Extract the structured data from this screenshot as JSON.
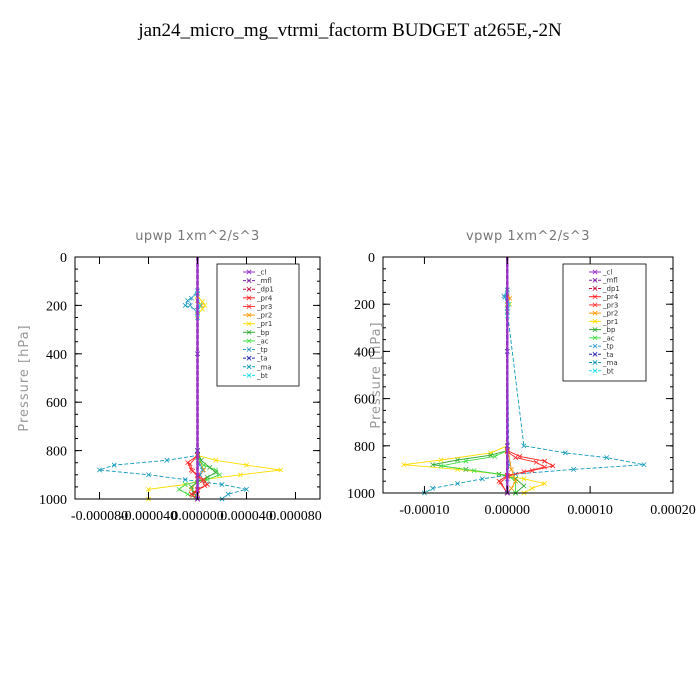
{
  "title": "jan24_micro_mg_vtrmi_factorm  BUDGET at265E,-2N",
  "colors": {
    "_cl": "#9933cc",
    "_mfl": "#7a1fa2",
    "_dp1": "#c0143c",
    "_pr4": "#ff2020",
    "_pr3": "#ff3333",
    "_pr2": "#ff9900",
    "_pr1": "#ffdd00",
    "_bp": "#33aa33",
    "_ac": "#44dd44",
    "_tp": "#3399cc",
    "_ta": "#2222aa",
    "_ma": "#1199bb",
    "_bt": "#22ddee"
  },
  "chart_data": [
    {
      "type": "line",
      "title": "upwp   1xm^2/s^3",
      "ylabel": "Pressure [hPa]",
      "xlim": [
        -0.0001,
        0.0001
      ],
      "ylim": [
        1000,
        0
      ],
      "y_inverted": true,
      "xticks": [
        "-0.000080",
        "-0.000040",
        "0.000000",
        "0.000040",
        "0.000080"
      ],
      "xtick_values": [
        -8e-05,
        -4e-05,
        0,
        4e-05,
        8e-05
      ],
      "yticks": [
        "0",
        "200",
        "400",
        "600",
        "800",
        "1000"
      ],
      "ytick_values": [
        0,
        200,
        400,
        600,
        800,
        1000
      ],
      "legend": [
        "_cl",
        "_mfl",
        "_dp1",
        "_pr4",
        "_pr3",
        "_pr2",
        "_pr1",
        "_bp",
        "_ac",
        "_tp",
        "_ta",
        "_ma",
        "_bt"
      ],
      "legend_position": "top-right",
      "series": [
        {
          "name": "_pr1",
          "x": [
            0,
            0,
            0,
            4e-06,
            6e-06,
            4e-06,
            0,
            0,
            1.5e-05,
            4e-05,
            6.8e-05,
            3.5e-05,
            5e-06,
            -1e-05,
            -4e-05,
            -4e-05,
            0
          ],
          "y": [
            0,
            100,
            160,
            185,
            200,
            215,
            240,
            820,
            840,
            860,
            880,
            900,
            920,
            940,
            960,
            1000,
            1000
          ]
        },
        {
          "name": "_pr2",
          "x": [
            0,
            0,
            0,
            3e-06,
            0,
            0,
            5e-06,
            0,
            -5e-06,
            0,
            0
          ],
          "y": [
            0,
            150,
            180,
            200,
            220,
            820,
            880,
            920,
            960,
            980,
            1000
          ]
        },
        {
          "name": "_ma",
          "x": [
            0,
            0,
            -8e-06,
            -1e-05,
            0,
            0,
            -2.5e-05,
            -6.8e-05,
            -8e-05,
            -4e-05,
            -1e-05,
            2e-05,
            4e-05,
            2.5e-05,
            2e-05
          ],
          "y": [
            0,
            150,
            180,
            200,
            220,
            820,
            840,
            860,
            880,
            900,
            920,
            940,
            960,
            980,
            1000
          ]
        },
        {
          "name": "_tp",
          "x": [
            0,
            0,
            -5e-06,
            -6e-06,
            0,
            0,
            2e-06,
            4e-06,
            2e-06,
            0,
            0
          ],
          "y": [
            0,
            140,
            170,
            200,
            230,
            820,
            860,
            880,
            900,
            960,
            1000
          ]
        },
        {
          "name": "_ac",
          "x": [
            0,
            0,
            0,
            5e-06,
            1.5e-05,
            1.8e-05,
            8e-06,
            -1e-05,
            -1.5e-05,
            -8e-06,
            0
          ],
          "y": [
            0,
            800,
            830,
            860,
            880,
            900,
            920,
            940,
            960,
            980,
            1000
          ]
        },
        {
          "name": "_bp",
          "x": [
            0,
            0,
            3e-06,
            1e-05,
            1.5e-05,
            8e-06,
            0,
            -5e-06,
            -3e-06,
            0
          ],
          "y": [
            0,
            800,
            840,
            870,
            890,
            910,
            930,
            950,
            975,
            1000
          ]
        },
        {
          "name": "_pr4",
          "x": [
            0,
            0,
            -8e-06,
            -5e-06,
            0,
            5e-06,
            8e-06,
            0,
            -5e-06,
            0
          ],
          "y": [
            0,
            820,
            850,
            880,
            900,
            920,
            940,
            960,
            980,
            1000
          ]
        },
        {
          "name": "_pr3",
          "x": [
            0,
            0,
            -6e-06,
            -4e-06,
            0,
            4e-06,
            6e-06,
            0,
            -4e-06,
            0
          ],
          "y": [
            0,
            820,
            855,
            885,
            905,
            925,
            945,
            965,
            985,
            1000
          ]
        },
        {
          "name": "_ta",
          "x": [
            0,
            0,
            0,
            0
          ],
          "y": [
            0,
            400,
            800,
            1000
          ]
        },
        {
          "name": "_bt",
          "x": [
            0,
            0,
            2e-06,
            0,
            0
          ],
          "y": [
            0,
            150,
            200,
            250,
            1000
          ]
        },
        {
          "name": "_dp1",
          "x": [
            0,
            0
          ],
          "y": [
            0,
            1000
          ]
        },
        {
          "name": "_mfl",
          "x": [
            0,
            0
          ],
          "y": [
            0,
            1000
          ]
        },
        {
          "name": "_cl",
          "x": [
            0,
            0
          ],
          "y": [
            0,
            1000
          ]
        }
      ]
    },
    {
      "type": "line",
      "title": "vpwp   1xm^2/s^3",
      "ylabel": "Pressure [hPa]",
      "xlim": [
        -0.00015,
        0.0002
      ],
      "ylim": [
        1000,
        0
      ],
      "y_inverted": true,
      "xticks": [
        "-0.00010",
        "0.00000",
        "0.00010",
        "0.00020"
      ],
      "xtick_values": [
        -0.0001,
        0,
        0.0001,
        0.0002
      ],
      "yticks": [
        "0",
        "200",
        "400",
        "600",
        "800",
        "1000"
      ],
      "ytick_values": [
        0,
        200,
        400,
        600,
        800,
        1000
      ],
      "legend": [
        "_cl",
        "_mfl",
        "_dp1",
        "_pr4",
        "_pr3",
        "_pr2",
        "_pr1",
        "_bp",
        "_ac",
        "_tp",
        "_ta",
        "_ma",
        "_bt"
      ],
      "legend_position": "top-right",
      "series": [
        {
          "name": "_pr1",
          "x": [
            0,
            0,
            0,
            3e-06,
            0,
            0,
            -2e-05,
            -8e-05,
            -0.000125,
            -6e-05,
            -1e-05,
            2e-05,
            4.5e-05,
            3e-05,
            2e-05
          ],
          "y": [
            0,
            140,
            170,
            200,
            230,
            800,
            830,
            860,
            880,
            900,
            920,
            940,
            960,
            980,
            1000
          ]
        },
        {
          "name": "_ma",
          "x": [
            0,
            0,
            -3e-06,
            0,
            0,
            2e-05,
            7e-05,
            0.00012,
            0.000165,
            8e-05,
            1e-05,
            -3e-05,
            -6e-05,
            -9e-05,
            -0.0001
          ],
          "y": [
            0,
            140,
            170,
            200,
            230,
            800,
            830,
            850,
            880,
            900,
            920,
            940,
            960,
            980,
            1000
          ]
        },
        {
          "name": "_tp",
          "x": [
            0,
            0,
            -4e-06,
            0,
            0,
            2e-06,
            0,
            0
          ],
          "y": [
            0,
            140,
            165,
            190,
            220,
            880,
            940,
            1000
          ]
        },
        {
          "name": "_bp",
          "x": [
            0,
            0,
            -2e-05,
            -6e-05,
            -9e-05,
            -5e-05,
            -1e-05,
            1e-05,
            2e-05,
            1e-05
          ],
          "y": [
            0,
            820,
            840,
            860,
            880,
            900,
            920,
            940,
            970,
            1000
          ]
        },
        {
          "name": "_ac",
          "x": [
            0,
            0,
            -1.5e-05,
            -5e-05,
            -8e-05,
            -4e-05,
            0,
            1e-05,
            1e-05
          ],
          "y": [
            0,
            820,
            845,
            865,
            885,
            905,
            925,
            950,
            1000
          ]
        },
        {
          "name": "_pr4",
          "x": [
            0,
            0,
            1.5e-05,
            4.5e-05,
            5.5e-05,
            3e-05,
            0,
            -1e-05,
            0
          ],
          "y": [
            0,
            820,
            845,
            865,
            885,
            905,
            925,
            950,
            1000
          ]
        },
        {
          "name": "_pr3",
          "x": [
            0,
            0,
            1e-05,
            3.5e-05,
            4.5e-05,
            2e-05,
            0,
            -8e-06,
            0
          ],
          "y": [
            0,
            825,
            850,
            870,
            890,
            910,
            930,
            955,
            1000
          ]
        },
        {
          "name": "_pr2",
          "x": [
            0,
            0,
            3e-06,
            0,
            0,
            5e-06,
            1e-05,
            5e-06,
            0
          ],
          "y": [
            0,
            150,
            175,
            200,
            800,
            900,
            950,
            980,
            1000
          ]
        },
        {
          "name": "_ta",
          "x": [
            0,
            0,
            0,
            0
          ],
          "y": [
            0,
            400,
            800,
            1000
          ]
        },
        {
          "name": "_bt",
          "x": [
            0,
            0,
            2e-06,
            0,
            0
          ],
          "y": [
            0,
            150,
            200,
            250,
            1000
          ]
        },
        {
          "name": "_dp1",
          "x": [
            0,
            0
          ],
          "y": [
            0,
            1000
          ]
        },
        {
          "name": "_mfl",
          "x": [
            0,
            0
          ],
          "y": [
            0,
            1000
          ]
        },
        {
          "name": "_cl",
          "x": [
            0,
            0
          ],
          "y": [
            0,
            1000
          ]
        }
      ]
    }
  ]
}
